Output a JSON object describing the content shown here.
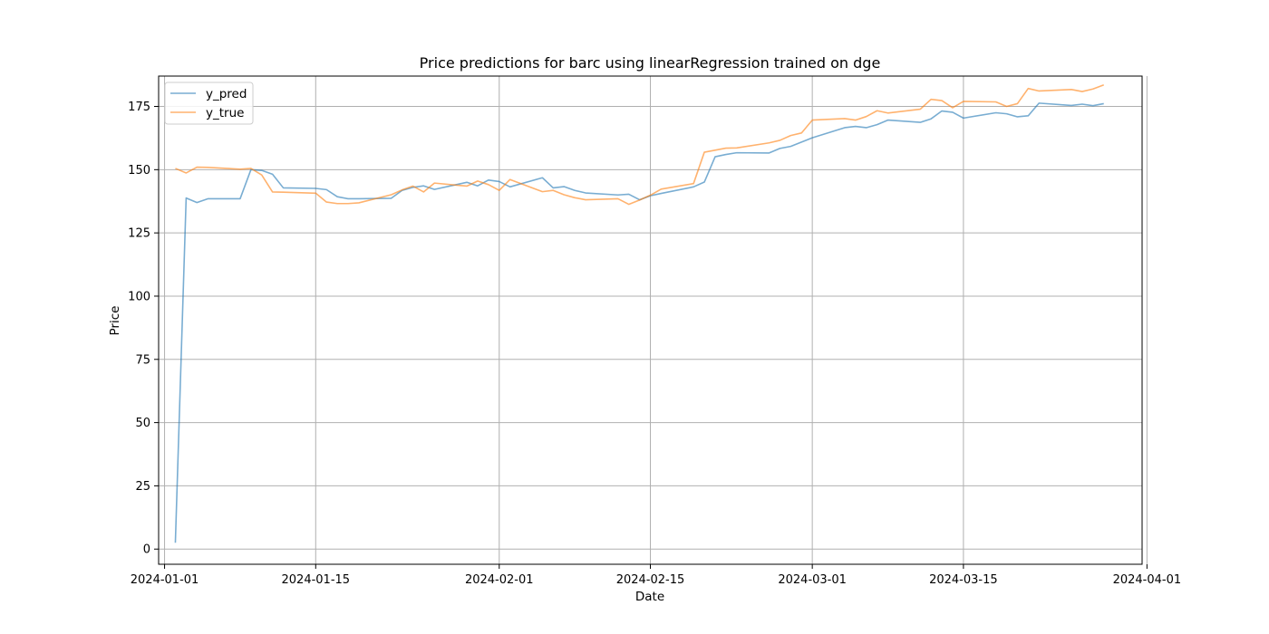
{
  "chart_data": {
    "type": "line",
    "title": "Price predictions for barc using linearRegression trained on dge",
    "xlabel": "Date",
    "ylabel": "Price",
    "xlim": [
      "2024-01-01",
      "2024-03-31"
    ],
    "ylim": [
      -6,
      187
    ],
    "x_ticks": [
      "2024-01-01",
      "2024-01-15",
      "2024-02-01",
      "2024-02-15",
      "2024-03-01",
      "2024-03-15",
      "2024-04-01"
    ],
    "y_ticks": [
      0,
      25,
      50,
      75,
      100,
      125,
      150,
      175
    ],
    "grid": true,
    "legend_position": "top-left",
    "x": [
      "2024-01-02",
      "2024-01-03",
      "2024-01-04",
      "2024-01-05",
      "2024-01-08",
      "2024-01-09",
      "2024-01-10",
      "2024-01-11",
      "2024-01-12",
      "2024-01-15",
      "2024-01-16",
      "2024-01-17",
      "2024-01-18",
      "2024-01-19",
      "2024-01-22",
      "2024-01-23",
      "2024-01-24",
      "2024-01-25",
      "2024-01-26",
      "2024-01-29",
      "2024-01-30",
      "2024-01-31",
      "2024-02-01",
      "2024-02-02",
      "2024-02-05",
      "2024-02-06",
      "2024-02-07",
      "2024-02-08",
      "2024-02-09",
      "2024-02-12",
      "2024-02-13",
      "2024-02-14",
      "2024-02-15",
      "2024-02-16",
      "2024-02-19",
      "2024-02-20",
      "2024-02-21",
      "2024-02-22",
      "2024-02-23",
      "2024-02-26",
      "2024-02-27",
      "2024-02-28",
      "2024-02-29",
      "2024-03-01",
      "2024-03-04",
      "2024-03-05",
      "2024-03-06",
      "2024-03-07",
      "2024-03-08",
      "2024-03-11",
      "2024-03-12",
      "2024-03-13",
      "2024-03-14",
      "2024-03-15",
      "2024-03-18",
      "2024-03-19",
      "2024-03-20",
      "2024-03-21",
      "2024-03-22",
      "2024-03-25",
      "2024-03-26",
      "2024-03-27",
      "2024-03-28"
    ],
    "series": [
      {
        "name": "y_pred",
        "color": "#1f77b4",
        "values": [
          2.5,
          138.8,
          137.0,
          138.5,
          138.5,
          150.0,
          149.7,
          148.2,
          142.8,
          142.6,
          142.1,
          139.3,
          138.5,
          138.5,
          138.7,
          141.8,
          143.0,
          143.6,
          142.2,
          145.0,
          143.6,
          145.9,
          145.3,
          143.2,
          146.8,
          142.8,
          143.3,
          141.8,
          140.8,
          140.0,
          140.3,
          138.1,
          139.7,
          140.6,
          143.2,
          145.1,
          155.1,
          156.0,
          156.7,
          156.6,
          158.4,
          159.2,
          160.9,
          162.6,
          166.6,
          167.1,
          166.6,
          167.8,
          169.6,
          168.7,
          170.1,
          173.2,
          172.7,
          170.4,
          172.5,
          172.1,
          170.9,
          171.3,
          176.3,
          175.4,
          175.9,
          175.3,
          176.1
        ]
      },
      {
        "name": "y_true",
        "color": "#ff7f0e",
        "values": [
          150.5,
          148.7,
          151.0,
          150.9,
          150.2,
          150.5,
          147.9,
          141.2,
          141.1,
          140.7,
          137.2,
          136.6,
          136.6,
          136.9,
          140.1,
          142.0,
          143.5,
          141.2,
          144.7,
          143.5,
          145.5,
          144.1,
          141.8,
          146.1,
          141.3,
          141.8,
          140.1,
          138.9,
          138.1,
          138.5,
          136.3,
          138.0,
          139.9,
          142.3,
          144.5,
          156.9,
          157.7,
          158.5,
          158.6,
          160.6,
          161.6,
          163.5,
          164.5,
          169.6,
          170.2,
          169.6,
          171.0,
          173.3,
          172.4,
          173.9,
          177.8,
          177.3,
          174.5,
          177.0,
          176.8,
          175.0,
          176.1,
          182.1,
          181.1,
          181.7,
          180.9,
          181.9,
          183.5
        ]
      }
    ]
  }
}
